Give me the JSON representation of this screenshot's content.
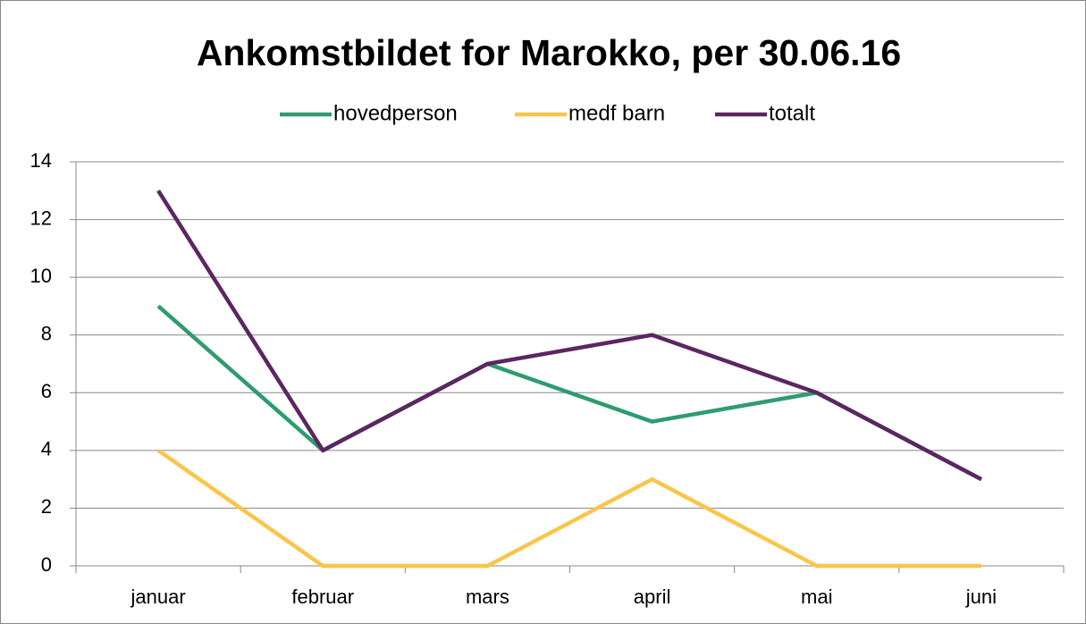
{
  "chart_data": {
    "type": "line",
    "title": "Ankomstbildet for Marokko, per 30.06.16",
    "categories": [
      "januar",
      "februar",
      "mars",
      "april",
      "mai",
      "juni"
    ],
    "series": [
      {
        "name": "hovedperson",
        "color": "#2e9c6f",
        "values": [
          9,
          4,
          7,
          5,
          6,
          3
        ]
      },
      {
        "name": "medf barn",
        "color": "#f9c64a",
        "values": [
          4,
          0,
          0,
          3,
          0,
          0
        ]
      },
      {
        "name": "totalt",
        "color": "#5c2662",
        "values": [
          13,
          4,
          7,
          8,
          6,
          3
        ]
      }
    ],
    "ylim": [
      0,
      14
    ],
    "yticks": [
      0,
      2,
      4,
      6,
      8,
      10,
      12,
      14
    ],
    "grid": true,
    "legend": "top"
  }
}
